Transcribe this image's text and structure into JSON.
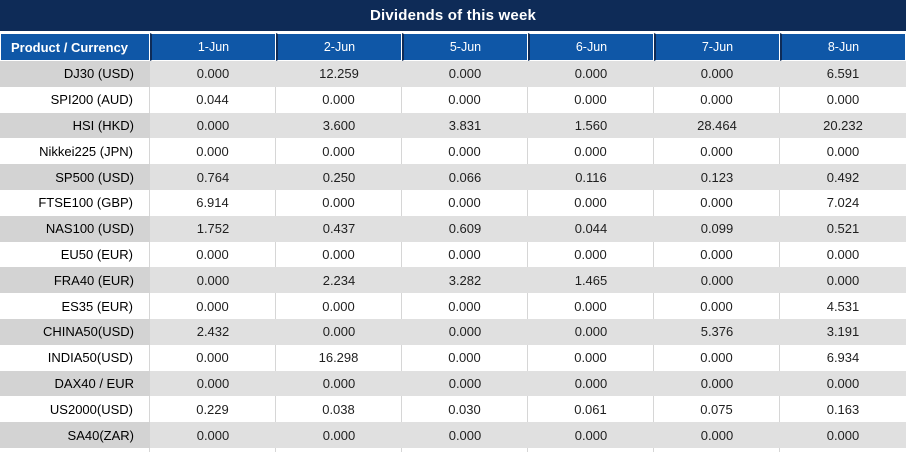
{
  "title": "Dividends of this week",
  "colors": {
    "title_bg": "#0E2B57",
    "header_bg": "#0F57A7",
    "gray_row_bg": "#E0E0E0",
    "gray_row_label_bg": "#D3D3D3",
    "nonzero_value_text": "#FF0000",
    "zero_value_text": "#1F1F1F",
    "header_text": "#FFFFFF"
  },
  "table": {
    "product_column_header": "Product / Currency",
    "date_columns": [
      "1-Jun",
      "2-Jun",
      "5-Jun",
      "6-Jun",
      "7-Jun",
      "8-Jun"
    ],
    "rows": [
      {
        "product": "DJ30 (USD)",
        "values": [
          "0.000",
          "12.259",
          "0.000",
          "0.000",
          "0.000",
          "6.591"
        ]
      },
      {
        "product": "SPI200 (AUD)",
        "values": [
          "0.044",
          "0.000",
          "0.000",
          "0.000",
          "0.000",
          "0.000"
        ]
      },
      {
        "product": "HSI (HKD)",
        "values": [
          "0.000",
          "3.600",
          "3.831",
          "1.560",
          "28.464",
          "20.232"
        ]
      },
      {
        "product": "Nikkei225 (JPN)",
        "values": [
          "0.000",
          "0.000",
          "0.000",
          "0.000",
          "0.000",
          "0.000"
        ]
      },
      {
        "product": "SP500 (USD)",
        "values": [
          "0.764",
          "0.250",
          "0.066",
          "0.116",
          "0.123",
          "0.492"
        ]
      },
      {
        "product": "FTSE100 (GBP)",
        "values": [
          "6.914",
          "0.000",
          "0.000",
          "0.000",
          "0.000",
          "7.024"
        ]
      },
      {
        "product": "NAS100 (USD)",
        "values": [
          "1.752",
          "0.437",
          "0.609",
          "0.044",
          "0.099",
          "0.521"
        ]
      },
      {
        "product": "EU50 (EUR)",
        "values": [
          "0.000",
          "0.000",
          "0.000",
          "0.000",
          "0.000",
          "0.000"
        ]
      },
      {
        "product": "FRA40 (EUR)",
        "values": [
          "0.000",
          "2.234",
          "3.282",
          "1.465",
          "0.000",
          "0.000"
        ]
      },
      {
        "product": "ES35 (EUR)",
        "values": [
          "0.000",
          "0.000",
          "0.000",
          "0.000",
          "0.000",
          "4.531"
        ]
      },
      {
        "product": "CHINA50(USD)",
        "values": [
          "2.432",
          "0.000",
          "0.000",
          "0.000",
          "5.376",
          "3.191"
        ]
      },
      {
        "product": "INDIA50(USD)",
        "values": [
          "0.000",
          "16.298",
          "0.000",
          "0.000",
          "0.000",
          "6.934"
        ]
      },
      {
        "product": "DAX40 / EUR",
        "values": [
          "0.000",
          "0.000",
          "0.000",
          "0.000",
          "0.000",
          "0.000"
        ]
      },
      {
        "product": "US2000(USD)",
        "values": [
          "0.229",
          "0.038",
          "0.030",
          "0.061",
          "0.075",
          "0.163"
        ]
      },
      {
        "product": "SA40(ZAR)",
        "values": [
          "0.000",
          "0.000",
          "0.000",
          "0.000",
          "0.000",
          "0.000"
        ]
      }
    ]
  }
}
